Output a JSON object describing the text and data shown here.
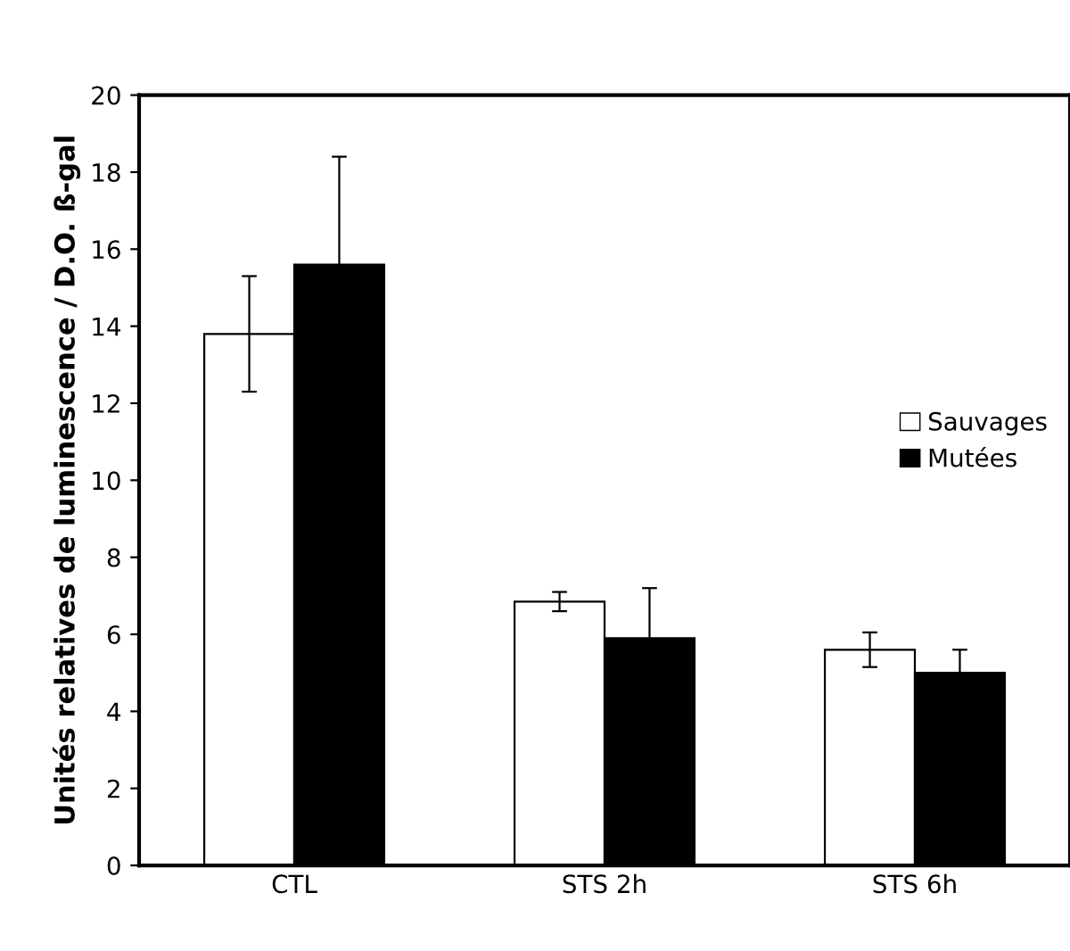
{
  "chart_data": {
    "type": "bar",
    "ylabel": "Unités relatives de luminescence / D.O. ß-gal",
    "categories": [
      "CTL",
      "STS 2h",
      "STS 6h"
    ],
    "series": [
      {
        "name": "Sauvages",
        "color": "#ffffff",
        "values": [
          13.8,
          6.85,
          5.6
        ],
        "errors": [
          1.5,
          0.25,
          0.45
        ]
      },
      {
        "name": "Mutées",
        "color": "#000000",
        "values": [
          15.6,
          5.9,
          5.0
        ],
        "errors": [
          2.8,
          1.3,
          0.6
        ]
      }
    ],
    "ylim": [
      0,
      20
    ],
    "yticks": [
      0,
      2,
      4,
      6,
      8,
      10,
      12,
      14,
      16,
      18,
      20
    ],
    "grid": false,
    "legend": "right"
  }
}
